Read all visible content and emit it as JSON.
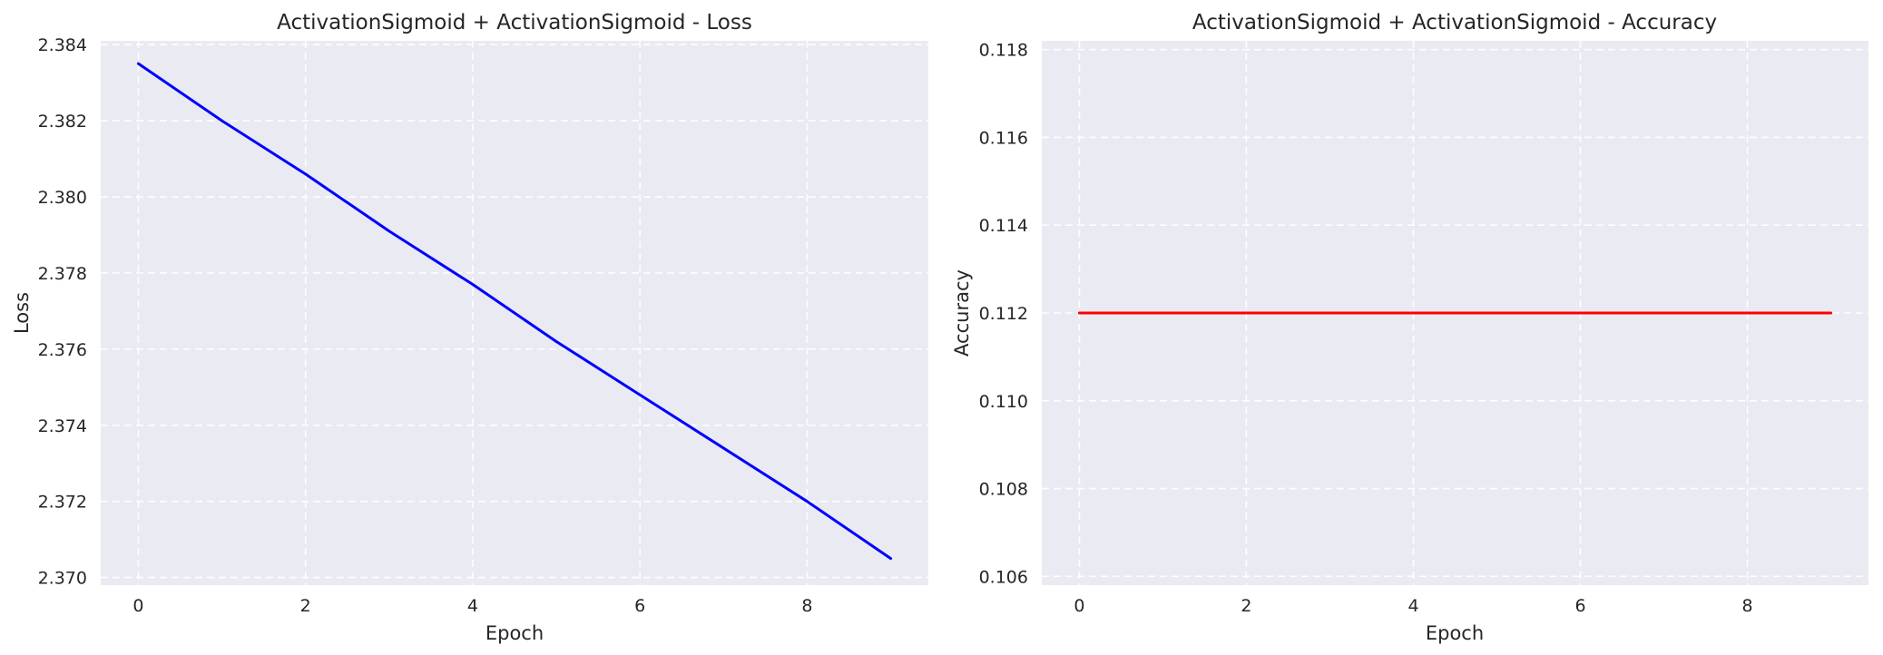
{
  "chart_data": [
    {
      "type": "line",
      "title": "ActivationSigmoid + ActivationSigmoid - Loss",
      "xlabel": "Epoch",
      "ylabel": "Loss",
      "xlim": [
        -0.45,
        9.45
      ],
      "ylim": [
        2.3698,
        2.3841
      ],
      "x_ticks": [
        0,
        2,
        4,
        6,
        8
      ],
      "y_ticks": [
        2.37,
        2.372,
        2.374,
        2.376,
        2.378,
        2.38,
        2.382,
        2.384
      ],
      "grid": true,
      "series": [
        {
          "color": "#0000ff",
          "x": [
            0,
            1,
            2,
            3,
            4,
            5,
            6,
            7,
            8,
            9
          ],
          "values": [
            2.3835,
            2.382,
            2.3806,
            2.3791,
            2.3777,
            2.3762,
            2.3748,
            2.3734,
            2.372,
            2.3705
          ]
        }
      ]
    },
    {
      "type": "line",
      "title": "ActivationSigmoid + ActivationSigmoid - Accuracy",
      "xlabel": "Epoch",
      "ylabel": "Accuracy",
      "xlim": [
        -0.45,
        9.45
      ],
      "ylim": [
        0.1058,
        0.1182
      ],
      "x_ticks": [
        0,
        2,
        4,
        6,
        8
      ],
      "y_ticks": [
        0.106,
        0.108,
        0.11,
        0.112,
        0.114,
        0.116,
        0.118
      ],
      "grid": true,
      "series": [
        {
          "color": "#ff0000",
          "x": [
            0,
            1,
            2,
            3,
            4,
            5,
            6,
            7,
            8,
            9
          ],
          "values": [
            0.112,
            0.112,
            0.112,
            0.112,
            0.112,
            0.112,
            0.112,
            0.112,
            0.112,
            0.112
          ]
        }
      ]
    }
  ]
}
